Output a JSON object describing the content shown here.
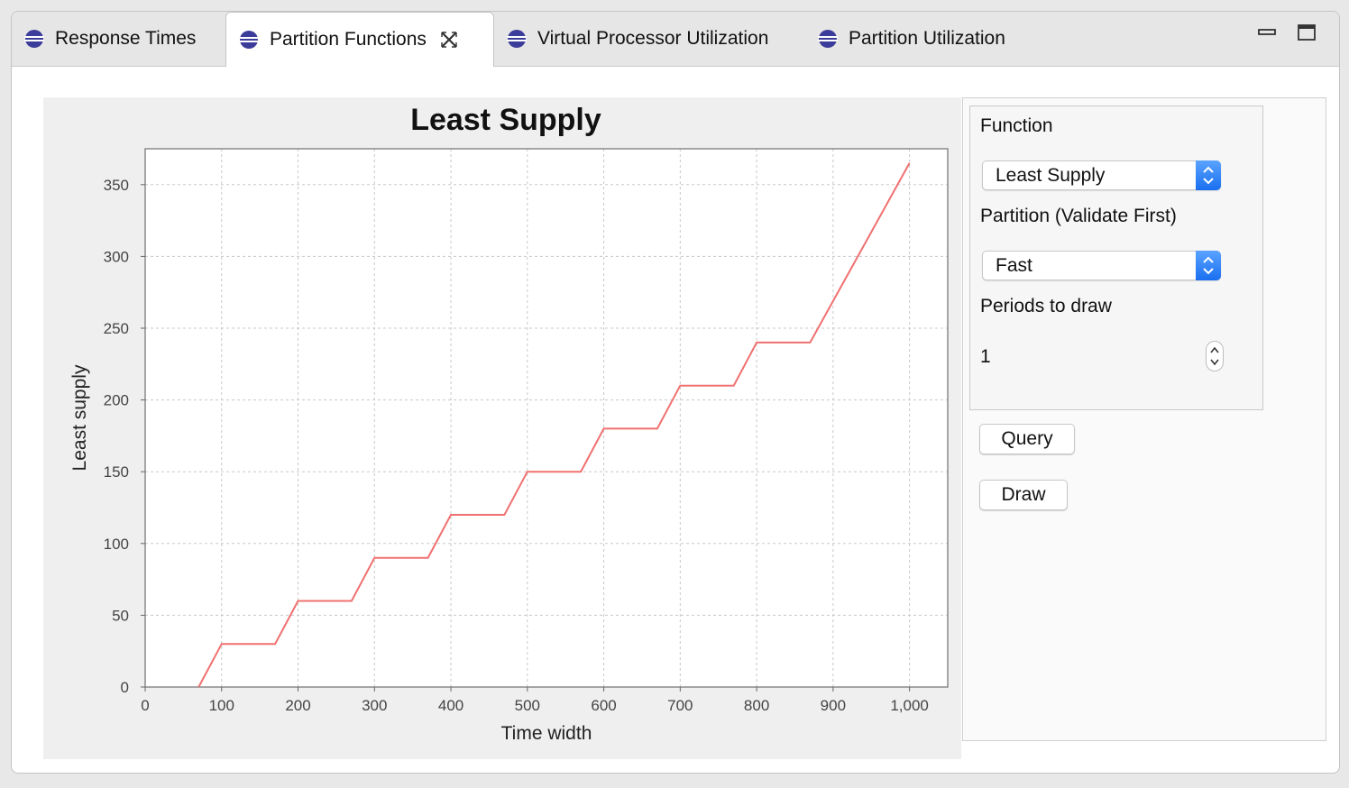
{
  "tabs": [
    {
      "label": "Response Times",
      "icon": "eclipse-view-icon",
      "active": false
    },
    {
      "label": "Partition Functions",
      "icon": "eclipse-view-icon",
      "active": true
    },
    {
      "label": "Virtual Processor Utilization",
      "icon": "eclipse-view-icon",
      "active": false
    },
    {
      "label": "Partition Utilization",
      "icon": "eclipse-view-icon",
      "active": false
    }
  ],
  "window_controls": {
    "minimize_icon": "minimize-icon",
    "maximize_icon": "maximize-icon"
  },
  "panel": {
    "function_label": "Function",
    "function_value": "Least Supply",
    "partition_label": "Partition (Validate First)",
    "partition_value": "Fast",
    "periods_label": "Periods to draw",
    "periods_value": "1",
    "query_label": "Query",
    "draw_label": "Draw"
  },
  "colors": {
    "series": "#f07070",
    "accent": "#1a6ff0"
  },
  "chart_data": {
    "type": "line",
    "title": "Least Supply",
    "xlabel": "Time width",
    "ylabel": "Least supply",
    "xlim": [
      0,
      1050
    ],
    "ylim": [
      0,
      375
    ],
    "xticks": [
      0,
      100,
      200,
      300,
      400,
      500,
      600,
      700,
      800,
      900,
      1000
    ],
    "xtick_labels": [
      "0",
      "100",
      "200",
      "300",
      "400",
      "500",
      "600",
      "700",
      "800",
      "900",
      "1,000"
    ],
    "yticks": [
      0,
      50,
      100,
      150,
      200,
      250,
      300,
      350
    ],
    "ytick_labels": [
      "0",
      "50",
      "100",
      "150",
      "200",
      "250",
      "300",
      "350"
    ],
    "grid": true,
    "series": [
      {
        "x": [
          70,
          100,
          170,
          200,
          270,
          300,
          370,
          400,
          470,
          500,
          570,
          600,
          670,
          700,
          770,
          800,
          870,
          1000
        ],
        "y": [
          0,
          30,
          30,
          60,
          60,
          90,
          90,
          120,
          120,
          150,
          150,
          180,
          180,
          210,
          210,
          240,
          240,
          365
        ]
      }
    ]
  }
}
